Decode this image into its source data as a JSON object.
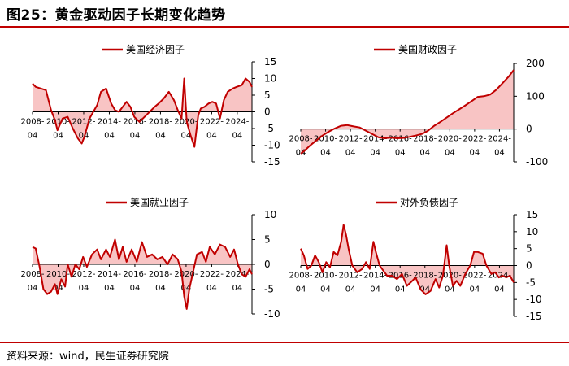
{
  "title": "图25：黄金驱动因子长期变化趋势",
  "source": "资料来源：wind，民生证券研究院",
  "colors": {
    "line": "#c00000",
    "fill": "#f8c4c4",
    "axis": "#000000"
  },
  "chart_data": [
    {
      "type": "area",
      "title": "美国经济因子",
      "legend": "美国经济因子",
      "legend_placement": "top-left",
      "y_axis_side": "right",
      "ylim": [
        -15,
        15
      ],
      "yticks": [
        -15,
        -10,
        -5,
        0,
        5,
        10,
        15
      ],
      "x_years": [
        "2008-",
        "2010-",
        "2012-",
        "2014-",
        "2016-",
        "2018-",
        "2020-",
        "2022-",
        "2024-"
      ],
      "x_months": [
        "04",
        "04",
        "04",
        "04",
        "04",
        "04",
        "04",
        "04",
        "04"
      ],
      "xlim": [
        2008.25,
        2025.4
      ],
      "x": [
        2008.25,
        2008.5,
        2008.9,
        2009.3,
        2009.7,
        2010.0,
        2010.2,
        2010.6,
        2011.0,
        2011.4,
        2011.8,
        2012.1,
        2012.3,
        2012.7,
        2013.0,
        2013.3,
        2013.6,
        2014.0,
        2014.4,
        2014.7,
        2015.0,
        2015.3,
        2015.6,
        2015.9,
        2016.2,
        2016.6,
        2017.0,
        2017.4,
        2017.8,
        2018.1,
        2018.5,
        2018.9,
        2019.3,
        2019.6,
        2019.9,
        2020.1,
        2020.3,
        2020.6,
        2020.9,
        2021.2,
        2021.4,
        2021.7,
        2022.0,
        2022.3,
        2022.6,
        2022.9,
        2023.2,
        2023.5,
        2023.9,
        2024.2,
        2024.6,
        2024.9,
        2025.2,
        2025.4
      ],
      "y": [
        8.5,
        7.5,
        7,
        6.5,
        0.5,
        -2.5,
        -5.5,
        -2,
        -1.5,
        -5,
        -8,
        -9.5,
        -7.5,
        -2,
        0,
        2,
        6,
        7,
        2.5,
        0.5,
        0,
        1.5,
        3,
        1.5,
        -1.5,
        -3,
        -1.5,
        0,
        1.5,
        2.5,
        4,
        6,
        3.5,
        0.5,
        -2,
        10,
        -3,
        -7,
        -10.5,
        -1,
        1,
        1.5,
        2.5,
        3,
        2.5,
        -2,
        3.5,
        6,
        7,
        7.5,
        8,
        10,
        9,
        7.5
      ]
    },
    {
      "type": "area",
      "title": "美国财政因子",
      "legend": "美国财政因子",
      "legend_placement": "top-left",
      "y_axis_side": "right",
      "ylim": [
        -100,
        200
      ],
      "yticks": [
        -100,
        0,
        100,
        200
      ],
      "x_years": [
        "2008-",
        "2010-",
        "2012-",
        "2014-",
        "2016-",
        "2018-",
        "2020-",
        "2022-",
        "2024-"
      ],
      "x_months": [
        "04",
        "04",
        "04",
        "04",
        "04",
        "04",
        "04",
        "04",
        "04"
      ],
      "xlim": [
        2008.25,
        2025.4
      ],
      "x": [
        2008.25,
        2008.5,
        2009.0,
        2009.5,
        2010.0,
        2010.5,
        2011.0,
        2011.5,
        2012.0,
        2012.5,
        2013.0,
        2013.5,
        2014.0,
        2014.5,
        2015.0,
        2015.5,
        2016.0,
        2016.5,
        2017.0,
        2017.5,
        2018.0,
        2018.5,
        2019.0,
        2019.5,
        2020.0,
        2020.5,
        2021.0,
        2021.5,
        2022.0,
        2022.5,
        2023.0,
        2023.5,
        2024.0,
        2024.5,
        2025.0,
        2025.4
      ],
      "y": [
        -75,
        -68,
        -50,
        -35,
        -20,
        -8,
        2,
        10,
        12,
        8,
        5,
        -5,
        -15,
        -25,
        -28,
        -26,
        -28,
        -27,
        -24,
        -20,
        -15,
        -5,
        10,
        22,
        35,
        48,
        60,
        72,
        85,
        98,
        100,
        105,
        120,
        140,
        160,
        180
      ]
    },
    {
      "type": "area",
      "title": "美国就业因子",
      "legend": "美国就业因子",
      "legend_placement": "top-left",
      "y_axis_side": "right",
      "ylim": [
        -10,
        10
      ],
      "yticks": [
        -10,
        -5,
        0,
        5,
        10
      ],
      "x_years": [
        "2008-",
        "2010-",
        "2012-",
        "2014-",
        "2016-",
        "2018-",
        "2020-",
        "2022-",
        "2024-"
      ],
      "x_months": [
        "04",
        "04",
        "04",
        "04",
        "04",
        "04",
        "04",
        "04",
        "04"
      ],
      "xlim": [
        2008.25,
        2025.4
      ],
      "x": [
        2008.25,
        2008.5,
        2008.8,
        2009.1,
        2009.4,
        2009.7,
        2010.0,
        2010.2,
        2010.5,
        2010.8,
        2011.0,
        2011.3,
        2011.6,
        2011.9,
        2012.2,
        2012.5,
        2012.9,
        2013.3,
        2013.6,
        2014.0,
        2014.3,
        2014.7,
        2015.0,
        2015.3,
        2015.6,
        2016.0,
        2016.4,
        2016.8,
        2017.2,
        2017.6,
        2018.0,
        2018.4,
        2018.8,
        2019.2,
        2019.6,
        2019.9,
        2020.1,
        2020.3,
        2020.5,
        2020.8,
        2021.1,
        2021.5,
        2021.8,
        2022.1,
        2022.5,
        2022.9,
        2023.3,
        2023.7,
        2024.0,
        2024.3,
        2024.6,
        2024.9,
        2025.2,
        2025.4
      ],
      "y": [
        3.5,
        3.2,
        -0.5,
        -5,
        -6,
        -5.5,
        -4,
        -6,
        -3,
        -4.5,
        0,
        -2.5,
        0,
        -1,
        1.5,
        -0.5,
        2,
        3,
        1,
        3,
        1.5,
        5,
        1,
        3.5,
        0.5,
        3,
        0.5,
        4.5,
        1.5,
        2,
        1,
        1.5,
        0,
        2,
        1,
        -1.5,
        -6.5,
        -9,
        -5,
        -1.5,
        2,
        2.5,
        0.5,
        3.5,
        2,
        4,
        3.5,
        1.5,
        3,
        0,
        -2,
        -2.5,
        -1,
        -2
      ]
    },
    {
      "type": "area",
      "title": "对外负债因子",
      "legend": "对外负债因子",
      "legend_placement": "top-left",
      "y_axis_side": "right",
      "ylim": [
        -15,
        15
      ],
      "yticks": [
        -15,
        -10,
        -5,
        0,
        5,
        10,
        15
      ],
      "x_years": [
        "2008-",
        "2010-",
        "2012-",
        "2014-",
        "2016-",
        "2018-",
        "2020-",
        "2022-",
        "2024-"
      ],
      "x_months": [
        "04",
        "04",
        "04",
        "04",
        "04",
        "04",
        "04",
        "04",
        "04"
      ],
      "xlim": [
        2008.25,
        2025.4
      ],
      "x": [
        2008.25,
        2008.5,
        2008.8,
        2009.1,
        2009.4,
        2009.7,
        2010.0,
        2010.3,
        2010.6,
        2010.9,
        2011.2,
        2011.5,
        2011.7,
        2011.9,
        2012.1,
        2012.4,
        2012.8,
        2013.2,
        2013.5,
        2013.8,
        2014.1,
        2014.3,
        2014.6,
        2014.9,
        2015.2,
        2015.6,
        2016.0,
        2016.4,
        2016.8,
        2017.1,
        2017.5,
        2017.9,
        2018.3,
        2018.7,
        2019.1,
        2019.4,
        2019.7,
        2020.0,
        2020.2,
        2020.5,
        2020.8,
        2021.1,
        2021.5,
        2021.9,
        2022.2,
        2022.5,
        2022.9,
        2023.2,
        2023.6,
        2023.9,
        2024.2,
        2024.5,
        2024.8,
        2025.1,
        2025.4
      ],
      "y": [
        5,
        3,
        -1,
        0,
        3,
        1,
        -2,
        1,
        -0.5,
        4,
        3,
        7,
        12,
        9,
        5,
        0,
        -2,
        -1,
        1,
        -1,
        7,
        4,
        0,
        -1.5,
        -3,
        -3,
        -4,
        -2.5,
        -6,
        -5,
        -3.5,
        -7,
        -8.5,
        -7.5,
        -4,
        -6.5,
        -3,
        6,
        0,
        -6,
        -4.5,
        -6,
        -2.5,
        0,
        4,
        4,
        3.5,
        0,
        -2.5,
        -2,
        -3.5,
        -3,
        -3.5,
        -3,
        -5
      ]
    }
  ]
}
